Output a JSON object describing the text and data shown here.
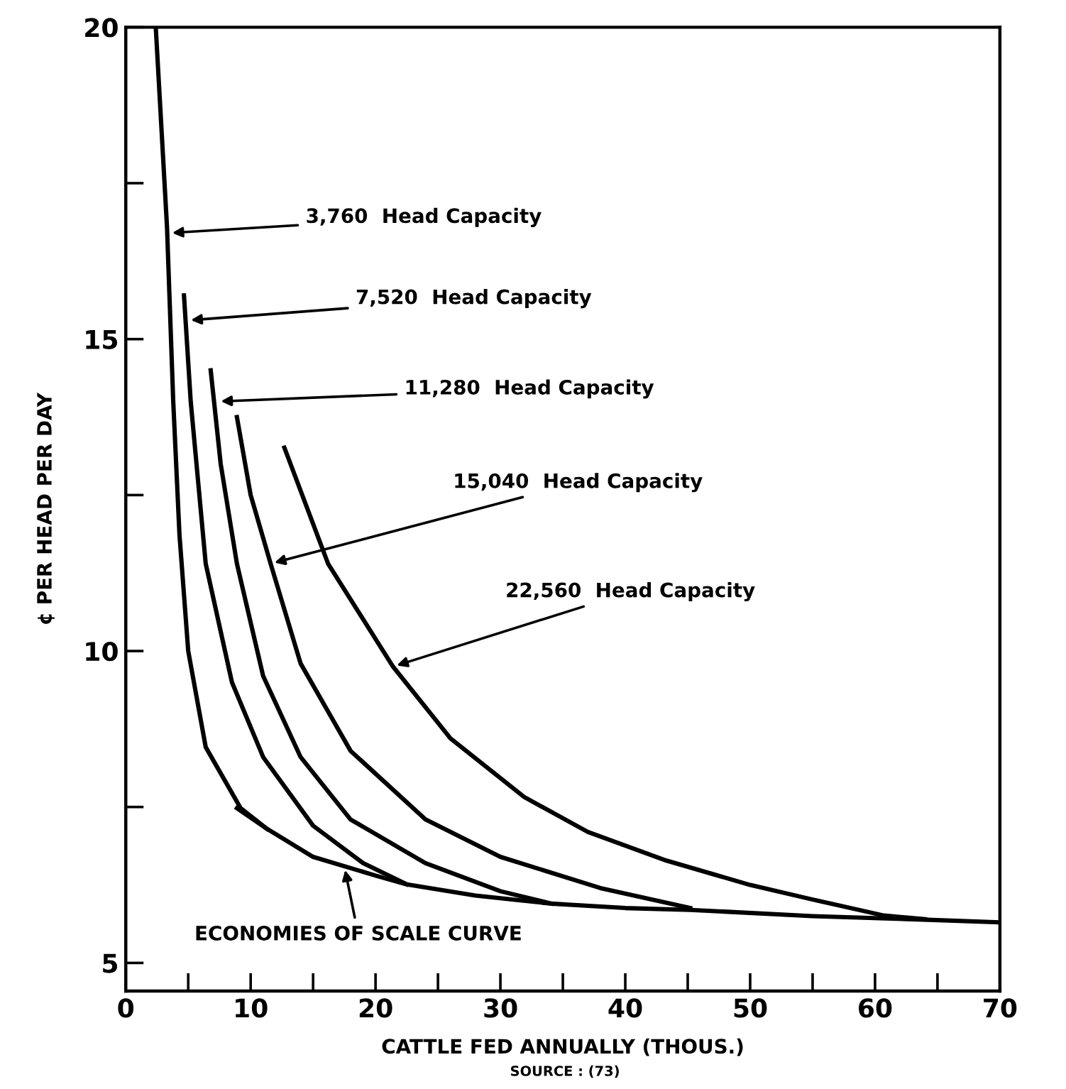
{
  "chart_data": {
    "type": "line",
    "xlabel": "CATTLE FED ANNUALLY (THOUS.)",
    "ylabel": "¢ PER HEAD PER DAY",
    "xlim": [
      0,
      70
    ],
    "ylim": [
      4.55,
      20
    ],
    "xticks": [
      0,
      {
        "value": 5,
        "label": null
      },
      10,
      {
        "value": 15,
        "label": null
      },
      20,
      {
        "value": 25,
        "label": null
      },
      30,
      {
        "value": 35,
        "label": null
      },
      40,
      {
        "value": 45,
        "label": null
      },
      50,
      {
        "value": 55,
        "label": null
      },
      60,
      {
        "value": 65,
        "label": null
      },
      70
    ],
    "yticks": [
      5,
      {
        "value": 7.5,
        "label": null
      },
      10,
      {
        "value": 12.5,
        "label": null
      },
      15,
      {
        "value": 17.5,
        "label": null
      },
      20
    ],
    "grid": false,
    "legend": false,
    "marker": "none",
    "line_style": "solid",
    "series": [
      {
        "color": "#000000",
        "x": [
          2.4,
          3.3,
          3.8,
          4.3,
          5.0,
          6.4,
          9.2,
          11.3
        ],
        "values": [
          20,
          16.8,
          14,
          11.86,
          10,
          8.46,
          7.48,
          7.15
        ]
      },
      {
        "color": "#000000",
        "x": [
          4.66,
          5.2,
          6.4,
          8.5,
          11,
          15,
          19,
          22.5
        ],
        "values": [
          15.7,
          14,
          11.4,
          9.5,
          8.3,
          7.2,
          6.6,
          6.26
        ]
      },
      {
        "color": "#000000",
        "x": [
          6.8,
          7.6,
          8.9,
          11,
          14,
          18,
          24,
          30,
          34.1
        ],
        "values": [
          14.5,
          13,
          11.4,
          9.6,
          8.3,
          7.3,
          6.6,
          6.15,
          5.95
        ]
      },
      {
        "color": "#000000",
        "x": [
          8.9,
          10,
          11.6,
          14,
          18,
          24,
          30,
          38,
          45.2
        ],
        "values": [
          13.75,
          12.5,
          11.4,
          9.8,
          8.4,
          7.3,
          6.7,
          6.2,
          5.88
        ]
      },
      {
        "color": "#000000",
        "x": [
          12.7,
          16.2,
          21.4,
          26,
          31.9,
          37,
          43.3,
          50,
          54.7,
          60.7,
          64
        ],
        "values": [
          13.26,
          11.4,
          9.75,
          8.6,
          7.66,
          7.1,
          6.64,
          6.25,
          6.03,
          5.76,
          5.7
        ]
      },
      {
        "color": "#000000",
        "x": [
          8.9,
          11.3,
          15,
          20,
          22.5,
          28,
          34.1,
          40,
          45.2,
          55,
          63,
          70
        ],
        "values": [
          7.48,
          7.15,
          6.7,
          6.4,
          6.26,
          6.08,
          5.95,
          5.88,
          5.85,
          5.75,
          5.7,
          5.65
        ]
      }
    ],
    "annotations": [
      {
        "text": "3,760  Head Capacity",
        "x": 3.4,
        "y": 16.7
      },
      {
        "text": "7,520  Head Capacity",
        "x": 4.9,
        "y": 15.3
      },
      {
        "text": "11,280  Head Capacity",
        "x": 7.3,
        "y": 14.0
      },
      {
        "text": "15,040  Head Capacity",
        "x": 11.6,
        "y": 11.4
      },
      {
        "text": "22,560  Head Capacity",
        "x": 21.4,
        "y": 9.75
      },
      {
        "text": "ECONOMIES OF SCALE CURVE",
        "x": 17.5,
        "y": 6.55
      },
      "SOURCE : (73)"
    ]
  }
}
